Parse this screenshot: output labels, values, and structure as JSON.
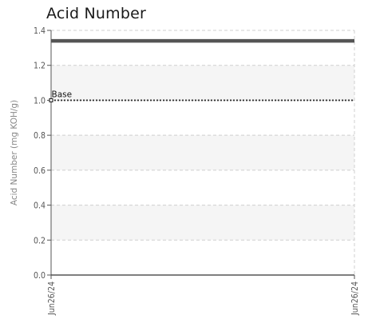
{
  "chart_data": {
    "type": "line",
    "title": "Acid Number",
    "ylabel": "Acid Number (mg KOH/g)",
    "xlabel": "",
    "ylim": [
      0,
      1.4
    ],
    "yticks": [
      "0.0",
      "0.2",
      "0.4",
      "0.6",
      "0.8",
      "1.0",
      "1.2",
      "1.4"
    ],
    "ytick_values": [
      0.0,
      0.2,
      0.4,
      0.6,
      0.8,
      1.0,
      1.2,
      1.4
    ],
    "categories": [
      "Jun26/24",
      "Jun26/24"
    ],
    "series": [
      {
        "values": [
          1.34,
          1.34
        ],
        "color": "#555555",
        "style": "solid-thick"
      }
    ],
    "reference_lines": [
      {
        "name": "Base",
        "value": 1.0,
        "color": "#333333",
        "style": "dotted"
      }
    ],
    "grid": true,
    "band_color": "#f5f5f5"
  }
}
